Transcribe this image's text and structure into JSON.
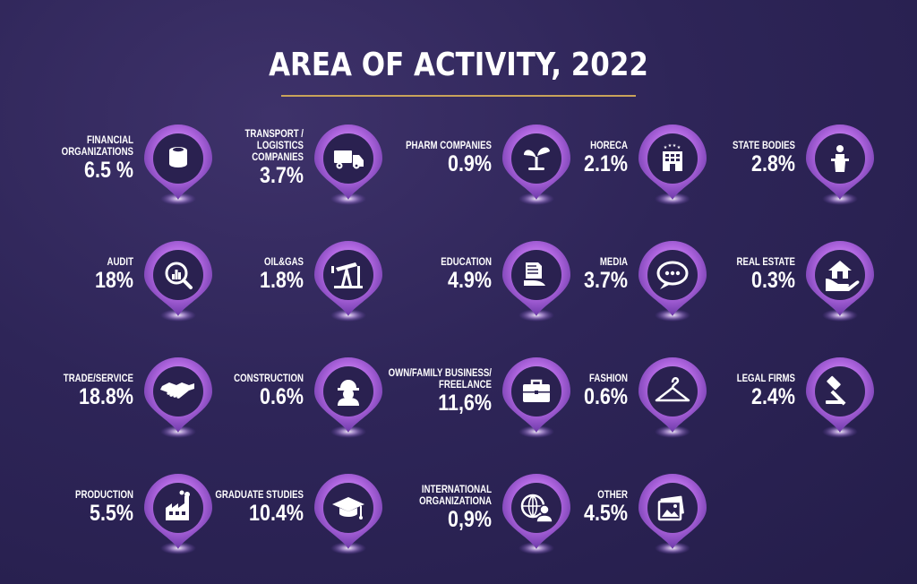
{
  "title": "AREA OF ACTIVITY, 2022",
  "colors": {
    "accent_purple": "#b066e0",
    "pin_dark": "#2a2150",
    "rule": "#c9a35a",
    "background": "#2e2558"
  },
  "chart_data": {
    "type": "table",
    "title": "AREA OF ACTIVITY, 2022",
    "items": [
      {
        "label": "FINANCIAL\nORGANIZATIONS",
        "value": "6.5 %",
        "icon": "coins-icon"
      },
      {
        "label": "TRANSPORT /\nLOGISTICS\nCOMPANIES",
        "value": "3.7%",
        "icon": "truck-icon"
      },
      {
        "label": "PHARM COMPANIES",
        "value": "0.9%",
        "icon": "sprout-icon"
      },
      {
        "label": "HORECA",
        "value": "2.1%",
        "icon": "hotel-icon"
      },
      {
        "label": "STATE BODIES",
        "value": "2.8%",
        "icon": "podium-icon"
      },
      {
        "label": "AUDIT",
        "value": "18%",
        "icon": "magnifier-chart-icon"
      },
      {
        "label": "OIL&GAS",
        "value": "1.8%",
        "icon": "oil-pump-icon"
      },
      {
        "label": "EDUCATION",
        "value": "4.9%",
        "icon": "book-hand-icon"
      },
      {
        "label": "MEDIA",
        "value": "3.7%",
        "icon": "speech-bubble-icon"
      },
      {
        "label": "REAL ESTATE",
        "value": "0.3%",
        "icon": "house-hand-icon"
      },
      {
        "label": "TRADE/SERVICE",
        "value": "18.8%",
        "icon": "handshake-icon"
      },
      {
        "label": "CONSTRUCTION",
        "value": "0.6%",
        "icon": "worker-icon"
      },
      {
        "label": "OWN/FAMILY BUSINESS/\nFREELANCE",
        "value": "11,6%",
        "icon": "briefcase-icon"
      },
      {
        "label": "FASHION",
        "value": "0.6%",
        "icon": "hanger-icon"
      },
      {
        "label": "LEGAL FIRMS",
        "value": "2.4%",
        "icon": "gavel-icon"
      },
      {
        "label": "PRODUCTION",
        "value": "5.5%",
        "icon": "factory-icon"
      },
      {
        "label": "GRADUATE STUDIES",
        "value": "10.4%",
        "icon": "graduation-cap-icon"
      },
      {
        "label": "INTERNATIONAL\nORGANIZATIONA",
        "value": "0,9%",
        "icon": "globe-person-icon"
      },
      {
        "label": "OTHER",
        "value": "4.5%",
        "icon": "picture-icon"
      }
    ]
  }
}
